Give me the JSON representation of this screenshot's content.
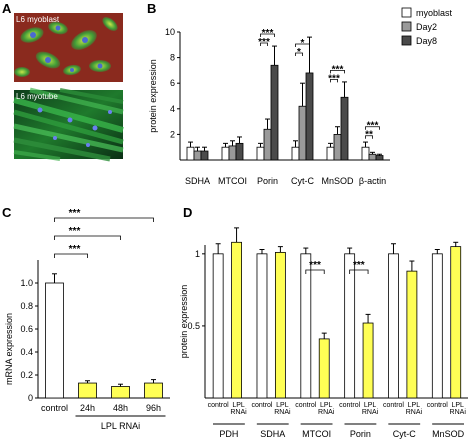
{
  "panel_labels": {
    "a": "A",
    "b": "B",
    "c": "C",
    "d": "D"
  },
  "images": [
    {
      "label": "L6 myoblast",
      "style": "red-green-fluorescence"
    },
    {
      "label": "L6 myotube",
      "style": "green-fluorescence"
    }
  ],
  "colors": {
    "white_bar": "#ffffff",
    "gray_bar": "#9a9a9a",
    "dark_bar": "#4a4a4a",
    "yellow_bar": "#ffff55"
  },
  "chart_data": [
    {
      "panel": "B",
      "type": "bar",
      "ylabel": "protein expression",
      "ylim": [
        0,
        10
      ],
      "yticks": [
        2,
        4,
        6,
        8,
        10
      ],
      "categories": [
        "SDHA",
        "MTCOI",
        "Porin",
        "Cyt-C",
        "MnSOD",
        "β-actin"
      ],
      "legend_position": "top-right",
      "series": [
        {
          "name": "myoblast",
          "color": "#ffffff",
          "values": [
            1.0,
            1.0,
            1.0,
            1.0,
            1.0,
            1.0
          ],
          "errors": [
            0.4,
            0.3,
            0.3,
            0.5,
            0.3,
            0.4
          ]
        },
        {
          "name": "Day2",
          "color": "#9a9a9a",
          "values": [
            0.7,
            1.1,
            2.4,
            4.2,
            2.0,
            0.45
          ],
          "errors": [
            0.3,
            0.4,
            0.8,
            1.8,
            0.6,
            0.15
          ]
        },
        {
          "name": "Day8",
          "color": "#4a4a4a",
          "values": [
            0.7,
            1.3,
            7.4,
            6.8,
            4.9,
            0.35
          ],
          "errors": [
            0.3,
            0.5,
            1.5,
            2.8,
            1.2,
            0.1
          ]
        }
      ],
      "significance": [
        {
          "category": "Porin",
          "text": "***"
        },
        {
          "category": "Porin",
          "text": "***"
        },
        {
          "category": "Cyt-C",
          "text": "*"
        },
        {
          "category": "Cyt-C",
          "text": "*"
        },
        {
          "category": "MnSOD",
          "text": "***"
        },
        {
          "category": "MnSOD",
          "text": "***"
        },
        {
          "category": "β-actin",
          "text": "***"
        },
        {
          "category": "β-actin",
          "text": "**"
        }
      ]
    },
    {
      "panel": "C",
      "type": "bar",
      "ylabel": "mRNA expression",
      "ylim": [
        0,
        1.2
      ],
      "yticks": [
        "0",
        "0.2",
        "0.4",
        "0.6",
        "0.8",
        "1.0"
      ],
      "categories": [
        "control",
        "24h",
        "48h",
        "96h"
      ],
      "group_label": "LPL RNAi",
      "values": [
        1.0,
        0.13,
        0.1,
        0.13
      ],
      "errors": [
        0.08,
        0.02,
        0.02,
        0.03
      ],
      "colors": [
        "#ffffff",
        "#ffff55",
        "#ffff55",
        "#ffff55"
      ],
      "significance": [
        "***",
        "***",
        "***"
      ]
    },
    {
      "panel": "D",
      "type": "bar",
      "ylabel": "protein expression",
      "ylim": [
        0,
        1.2
      ],
      "yticks": [
        "0.5",
        "1"
      ],
      "groups": [
        "PDH",
        "SDHA",
        "MTCOI",
        "Porin",
        "Cyt-C",
        "MnSOD"
      ],
      "bar_labels": [
        "control",
        "LPL RNAi"
      ],
      "control_values": [
        1.0,
        1.0,
        1.0,
        1.0,
        1.0,
        1.0
      ],
      "rnai_values": [
        1.08,
        1.01,
        0.41,
        0.52,
        0.88,
        1.05
      ],
      "control_errors": [
        0.07,
        0.03,
        0.04,
        0.04,
        0.07,
        0.03
      ],
      "rnai_errors": [
        0.1,
        0.04,
        0.04,
        0.06,
        0.07,
        0.03
      ],
      "significance": [
        {
          "group": "MTCOI",
          "text": "***"
        },
        {
          "group": "Porin",
          "text": "***"
        }
      ]
    }
  ]
}
